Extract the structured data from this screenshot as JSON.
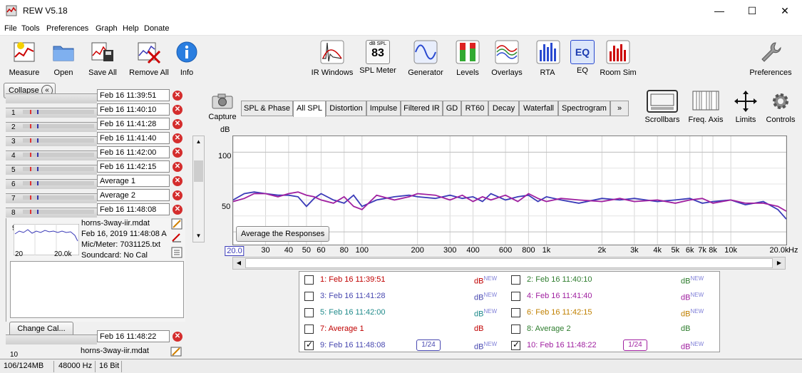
{
  "window": {
    "title": "REW V5.18",
    "minimize": "—",
    "maximize": "☐",
    "close": "✕"
  },
  "menu": [
    "File",
    "Tools",
    "Preferences",
    "Graph",
    "Help",
    "Donate"
  ],
  "toolbar_left": [
    {
      "label": "Measure",
      "icon": "measure-icon"
    },
    {
      "label": "Open",
      "icon": "folder-icon"
    },
    {
      "label": "Save All",
      "icon": "save-all-icon"
    },
    {
      "label": "Remove All",
      "icon": "remove-all-icon"
    },
    {
      "label": "Info",
      "icon": "info-icon"
    }
  ],
  "toolbar_center": [
    {
      "label": "IR Windows",
      "icon": "ir-windows-icon"
    },
    {
      "label": "SPL Meter",
      "icon": "spl-meter-icon",
      "icon_text_top": "dB SPL",
      "icon_text_value": "83"
    },
    {
      "label": "Generator",
      "icon": "generator-icon"
    },
    {
      "label": "Levels",
      "icon": "levels-icon"
    },
    {
      "label": "Overlays",
      "icon": "overlays-icon"
    },
    {
      "label": "RTA",
      "icon": "rta-icon"
    },
    {
      "label": "EQ",
      "icon": "eq-icon",
      "icon_text": "EQ"
    },
    {
      "label": "Room Sim",
      "icon": "room-sim-icon"
    }
  ],
  "preferences_label": "Preferences",
  "collapse_label": "Collapse",
  "measurements": [
    {
      "num": "1",
      "name": "Feb 16 11:39:51"
    },
    {
      "num": "2",
      "name": "Feb 16 11:40:10"
    },
    {
      "num": "3",
      "name": "Feb 16 11:41:28"
    },
    {
      "num": "4",
      "name": "Feb 16 11:41:40"
    },
    {
      "num": "5",
      "name": "Feb 16 11:42:00"
    },
    {
      "num": "6",
      "name": "Feb 16 11:42:15"
    },
    {
      "num": "7",
      "name": "Average 1"
    },
    {
      "num": "8",
      "name": "Average 2"
    },
    {
      "num": "9",
      "name": "Feb 16 11:48:08"
    }
  ],
  "selected_info": {
    "num": "9",
    "file": "horns-3way-iir.mdat",
    "date": "Feb 16, 2019 11:48:08 A",
    "mic": "Mic/Meter: 7031125.txt",
    "soundcard": "Soundcard: No Cal",
    "thumb_low": "20",
    "thumb_high": "20.0k"
  },
  "change_cal_label": "Change Cal...",
  "meas10": {
    "num": "10",
    "name": "Feb 16 11:48:22",
    "file": "horns-3way-iir.mdat"
  },
  "capture_label": "Capture",
  "graph_tabs": [
    {
      "label": "SPL & Phase",
      "selected": false
    },
    {
      "label": "All SPL",
      "selected": true
    },
    {
      "label": "Distortion",
      "selected": false
    },
    {
      "label": "Impulse",
      "selected": false
    },
    {
      "label": "Filtered IR",
      "selected": false
    },
    {
      "label": "GD",
      "selected": false
    },
    {
      "label": "RT60",
      "selected": false
    },
    {
      "label": "Decay",
      "selected": false
    },
    {
      "label": "Waterfall",
      "selected": false
    },
    {
      "label": "Spectrogram",
      "selected": false
    }
  ],
  "tabs_more": "»",
  "right_tools": [
    {
      "label": "Scrollbars",
      "icon": "scrollbars-icon"
    },
    {
      "label": "Freq. Axis",
      "icon": "freq-axis-icon"
    },
    {
      "label": "Limits",
      "icon": "limits-icon"
    },
    {
      "label": "Controls",
      "icon": "controls-icon"
    }
  ],
  "average_button": "Average the Responses",
  "chart_data": {
    "type": "line",
    "ylabel": "dB",
    "xunit": "Hz",
    "x_scale": "log",
    "xlim": [
      20,
      20000
    ],
    "ylim": [
      42,
      110
    ],
    "y_ticks": [
      "100",
      "50"
    ],
    "x_ticks": [
      "20.0",
      "30",
      "40",
      "50",
      "60",
      "80",
      "100",
      "200",
      "300",
      "400",
      "600",
      "800",
      "1k",
      "2k",
      "3k",
      "4k",
      "5k",
      "6k",
      "7k",
      "8k",
      "10k",
      "20.0k"
    ],
    "grid": true,
    "series": [
      {
        "name": "9: Feb 16 11:48:08",
        "color": "#3a3ab8",
        "x": [
          20,
          23,
          26,
          30,
          35,
          40,
          45,
          50,
          55,
          60,
          70,
          80,
          90,
          100,
          120,
          150,
          180,
          200,
          250,
          300,
          350,
          400,
          450,
          500,
          600,
          700,
          800,
          900,
          1000,
          1200,
          1500,
          2000,
          2500,
          3000,
          4000,
          5000,
          6000,
          7000,
          8000,
          10000,
          12000,
          15000,
          18000,
          20000
        ],
        "y": [
          70,
          74,
          75,
          74,
          73,
          73,
          72,
          66,
          71,
          74,
          70,
          68,
          73,
          66,
          70,
          72,
          73,
          72,
          71,
          73,
          71,
          72,
          69,
          74,
          70,
          72,
          73,
          69,
          72,
          70,
          68,
          71,
          70,
          71,
          69,
          70,
          71,
          68,
          69,
          70,
          67,
          69,
          64,
          58
        ]
      },
      {
        "name": "10: Feb 16 11:48:22",
        "color": "#a020a0",
        "x": [
          20,
          23,
          26,
          30,
          35,
          40,
          45,
          50,
          55,
          60,
          70,
          80,
          90,
          100,
          120,
          150,
          180,
          200,
          250,
          300,
          350,
          400,
          450,
          500,
          600,
          700,
          800,
          900,
          1000,
          1200,
          1500,
          2000,
          2500,
          3000,
          4000,
          5000,
          6000,
          7000,
          8000,
          10000,
          12000,
          15000,
          18000,
          20000
        ],
        "y": [
          69,
          71,
          74,
          74,
          72,
          74,
          75,
          73,
          72,
          70,
          68,
          72,
          66,
          64,
          73,
          70,
          72,
          74,
          73,
          70,
          73,
          69,
          72,
          70,
          73,
          69,
          74,
          71,
          69,
          71,
          70,
          69,
          71,
          69,
          70,
          68,
          70,
          71,
          68,
          70,
          68,
          68,
          66,
          63
        ]
      }
    ]
  },
  "legend": [
    {
      "num": "1",
      "label": "1: Feb 16 11:39:51",
      "color": "#c00000",
      "db": "dB",
      "new": "NEW",
      "checked": false
    },
    {
      "num": "2",
      "label": "2: Feb 16 11:40:10",
      "color": "#2e7d2e",
      "db": "dB",
      "new": "NEW",
      "checked": false
    },
    {
      "num": "3",
      "label": "3: Feb 16 11:41:28",
      "color": "#4848b0",
      "db": "dB",
      "new": "NEW",
      "checked": false
    },
    {
      "num": "4",
      "label": "4: Feb 16 11:41:40",
      "color": "#a020a0",
      "db": "dB",
      "new": "NEW",
      "checked": false
    },
    {
      "num": "5",
      "label": "5: Feb 16 11:42:00",
      "color": "#1f8a8a",
      "db": "dB",
      "new": "NEW",
      "checked": false
    },
    {
      "num": "6",
      "label": "6: Feb 16 11:42:15",
      "color": "#c08000",
      "db": "dB",
      "new": "NEW",
      "checked": false
    },
    {
      "num": "7",
      "label": "7: Average 1",
      "color": "#c00000",
      "db": "dB",
      "new": "",
      "checked": false
    },
    {
      "num": "8",
      "label": "8: Average 2",
      "color": "#2e7d2e",
      "db": "dB",
      "new": "",
      "checked": false
    },
    {
      "num": "9",
      "label": "9: Feb 16 11:48:08",
      "color": "#4848b0",
      "db": "dB",
      "new": "NEW",
      "checked": true,
      "smoothing": "1/24"
    },
    {
      "num": "10",
      "label": "10: Feb 16 11:48:22",
      "color": "#a020a0",
      "db": "dB",
      "new": "NEW",
      "checked": true,
      "smoothing": "1/24"
    }
  ],
  "status": {
    "memory": "106/124MB",
    "rate": "48000 Hz",
    "bits": "16 Bit"
  }
}
